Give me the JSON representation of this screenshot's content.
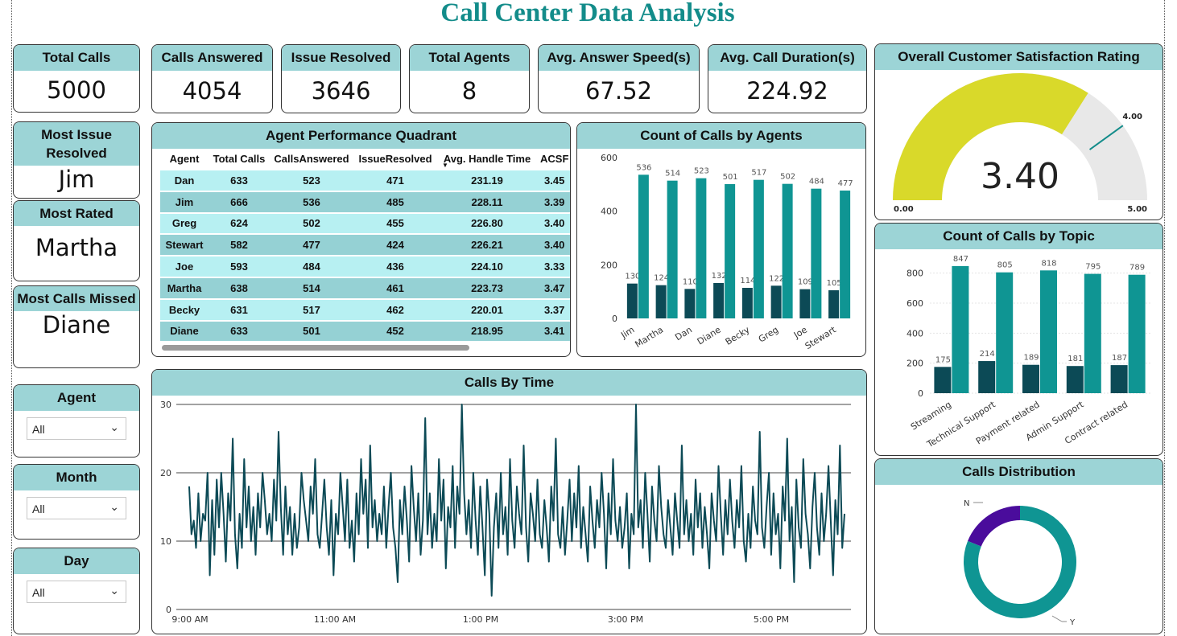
{
  "title": "Call Center Data Analysis",
  "kpis": {
    "total_calls": {
      "label": "Total Calls",
      "value": "5000"
    },
    "calls_answered": {
      "label": "Calls Answered",
      "value": "4054"
    },
    "issue_resolved": {
      "label": "Issue Resolved",
      "value": "3646"
    },
    "total_agents": {
      "label": "Total Agents",
      "value": "8"
    },
    "avg_answer_speed": {
      "label": "Avg. Answer Speed(s)",
      "value": "67.52"
    },
    "avg_call_duration": {
      "label": "Avg. Call Duration(s)",
      "value": "224.92"
    }
  },
  "side": {
    "most_issue_resolved": {
      "label": "Most Issue Resolved",
      "value": "Jim"
    },
    "most_rated": {
      "label": "Most Rated",
      "value": "Martha"
    },
    "most_calls_missed": {
      "label": "Most Calls Missed",
      "value": "Diane"
    }
  },
  "slicers": {
    "agent": {
      "label": "Agent",
      "value": "All"
    },
    "month": {
      "label": "Month",
      "value": "All"
    },
    "day": {
      "label": "Day",
      "value": "All"
    }
  },
  "agent_table": {
    "title": "Agent Performance Quadrant",
    "columns": [
      "Agent",
      "Total Calls",
      "CallsAnswered",
      "IssueResolved",
      "Avg. Handle Time",
      "ACSR"
    ],
    "visible_last_column": "ACSF",
    "rows": [
      [
        "Dan",
        "633",
        "523",
        "471",
        "231.19",
        "3.45"
      ],
      [
        "Jim",
        "666",
        "536",
        "485",
        "228.11",
        "3.39"
      ],
      [
        "Greg",
        "624",
        "502",
        "455",
        "226.80",
        "3.40"
      ],
      [
        "Stewart",
        "582",
        "477",
        "424",
        "226.21",
        "3.40"
      ],
      [
        "Joe",
        "593",
        "484",
        "436",
        "224.10",
        "3.33"
      ],
      [
        "Martha",
        "638",
        "514",
        "461",
        "223.73",
        "3.47"
      ],
      [
        "Becky",
        "631",
        "517",
        "462",
        "220.01",
        "3.37"
      ],
      [
        "Diane",
        "633",
        "501",
        "452",
        "218.95",
        "3.41"
      ]
    ]
  },
  "gauge": {
    "title": "Overall Customer Satisfaction Rating",
    "value": 3.4,
    "value_label": "3.40",
    "min": 0,
    "max": 5,
    "target": 4.0,
    "min_label": "0.00",
    "max_label": "5.00",
    "target_label": "4.00",
    "fill_color": "#d9d92a",
    "track_color": "#e8e8e8",
    "target_color": "#138c8a"
  },
  "chart_data": [
    {
      "type": "bar",
      "title": "Count of Calls by Agents",
      "categories": [
        "Jim",
        "Martha",
        "Dan",
        "Diane",
        "Becky",
        "Greg",
        "Joe",
        "Stewart"
      ],
      "series": [
        {
          "values": [
            130,
            124,
            110,
            132,
            114,
            122,
            109,
            105
          ],
          "labels": [
            "130",
            "124",
            "110",
            "132",
            "114",
            "122",
            "109",
            "105"
          ],
          "color": "#0c4a56"
        },
        {
          "values": [
            536,
            514,
            523,
            501,
            517,
            502,
            484,
            477
          ],
          "labels": [
            "536",
            "514",
            "523",
            "501",
            "517",
            "502",
            "484",
            "477"
          ],
          "color": "#0f9593"
        }
      ],
      "yticks": [
        0,
        200,
        400,
        600
      ],
      "ylim": [
        0,
        600
      ]
    },
    {
      "type": "bar",
      "title": "Count of Calls by Topic",
      "categories": [
        "Streaming",
        "Technical Support",
        "Payment related",
        "Admin Support",
        "Contract related"
      ],
      "series": [
        {
          "values": [
            175,
            214,
            189,
            181,
            187
          ],
          "labels": [
            "175",
            "214",
            "189",
            "181",
            "187"
          ],
          "color": "#0c4a56"
        },
        {
          "values": [
            847,
            805,
            818,
            795,
            789
          ],
          "labels": [
            "847",
            "805",
            "818",
            "795",
            "789"
          ],
          "color": "#0f9593"
        }
      ],
      "yticks": [
        0,
        200,
        400,
        600,
        800
      ],
      "ylim": [
        0,
        900
      ]
    },
    {
      "type": "line",
      "title": "Calls By Time",
      "xticks": [
        "9:00 AM",
        "11:00 AM",
        "1:00 PM",
        "3:00 PM",
        "5:00 PM"
      ],
      "yticks": [
        0,
        10,
        20,
        30
      ],
      "ylim": [
        0,
        30
      ],
      "color": "#0c4a56",
      "values": [
        18,
        11,
        13,
        9,
        17,
        10,
        14,
        13,
        20,
        5,
        16,
        8,
        19,
        12,
        20,
        14,
        7,
        17,
        13,
        25,
        11,
        6,
        14,
        9,
        22,
        12,
        18,
        10,
        15,
        8,
        17,
        12,
        20,
        16,
        11,
        14,
        10,
        19,
        13,
        26,
        15,
        8,
        18,
        11,
        15,
        8,
        14,
        9,
        12,
        20,
        16,
        13,
        10,
        18,
        14,
        22,
        11,
        9,
        14,
        19,
        12,
        8,
        16,
        5,
        14,
        11,
        20,
        15,
        10,
        19,
        9,
        13,
        7,
        17,
        11,
        22,
        14,
        19,
        9,
        24,
        12,
        16,
        10,
        14,
        11,
        18,
        9,
        15,
        20,
        12,
        9,
        4,
        16,
        11,
        18,
        13,
        7,
        21,
        15,
        10,
        17,
        8,
        13,
        28,
        11,
        17,
        9,
        14,
        10,
        22,
        13,
        19,
        6,
        15,
        12,
        21,
        9,
        18,
        14,
        30,
        17,
        11,
        16,
        9,
        20,
        13,
        8,
        18,
        12,
        5,
        19,
        14,
        2,
        12,
        17,
        9,
        20,
        11,
        15,
        8,
        22,
        13,
        9,
        18,
        14,
        11,
        24,
        12,
        7,
        17,
        14,
        10,
        19,
        11,
        9,
        16,
        12,
        7,
        18,
        13,
        25,
        11,
        9,
        15,
        8,
        13,
        19,
        10,
        17,
        12,
        21,
        9,
        15,
        11,
        7,
        18,
        13,
        9,
        16,
        12,
        20,
        14,
        6,
        17,
        11,
        22,
        13,
        10,
        15,
        9,
        12,
        17,
        6,
        14,
        11,
        30,
        12,
        16,
        9,
        20,
        14,
        7,
        18,
        13,
        10,
        21,
        15,
        11,
        9,
        16,
        12,
        8,
        17,
        13,
        9,
        24,
        11,
        16,
        10,
        14,
        8,
        19,
        12,
        17,
        9,
        15,
        11,
        6,
        17,
        13,
        10,
        21,
        14,
        8,
        16,
        11,
        19,
        13,
        9,
        16,
        12,
        21,
        10,
        7,
        14,
        9,
        18,
        13,
        11,
        26,
        12,
        9,
        15,
        20,
        8,
        17,
        11,
        14,
        6,
        18,
        13,
        25,
        10,
        15,
        4,
        19,
        12,
        9,
        22,
        14,
        11,
        6,
        15,
        20,
        12,
        8,
        17,
        10,
        14,
        21,
        13,
        5,
        16,
        11,
        24,
        9,
        14
      ]
    },
    {
      "type": "pie",
      "title": "Calls Distribution",
      "categories": [
        "N",
        "Y"
      ],
      "values": [
        946,
        4054
      ],
      "colors": [
        "#4a0c9c",
        "#0f9593"
      ]
    }
  ]
}
